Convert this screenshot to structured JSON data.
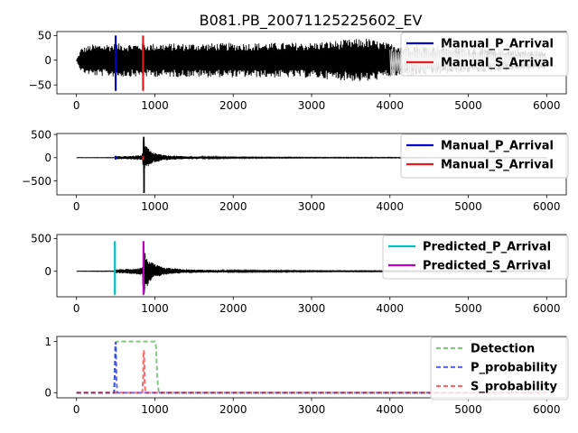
{
  "figure": {
    "title": "B081.PB_20071125225602_EV"
  },
  "chart_data": [
    {
      "type": "line",
      "title": "B081.PB_20071125225602_EV",
      "xlim": [
        -250,
        6250
      ],
      "ylim": [
        -68,
        58
      ],
      "x_ticks": [
        0,
        1000,
        2000,
        3000,
        4000,
        5000,
        6000
      ],
      "y_ticks": [
        50,
        0,
        -50
      ],
      "grid": false,
      "legend_position": "upper-right",
      "waveform": {
        "x_range": [
          0,
          6000
        ],
        "envelope": [
          [
            0,
            2
          ],
          [
            20,
            8
          ],
          [
            60,
            25
          ],
          [
            200,
            32
          ],
          [
            500,
            34
          ],
          [
            1000,
            34
          ],
          [
            2000,
            35
          ],
          [
            3000,
            36
          ],
          [
            3700,
            45
          ],
          [
            4000,
            34
          ],
          [
            4500,
            30
          ],
          [
            5000,
            26
          ],
          [
            5500,
            22
          ],
          [
            5990,
            18
          ],
          [
            6000,
            2
          ]
        ],
        "gray_overlay_range": [
          4000,
          6000
        ]
      },
      "series": [
        {
          "name": "Manual_P_Arrival",
          "x": 500,
          "y_range": [
            -62,
            50
          ],
          "color": "#0000cc",
          "style": "solid"
        },
        {
          "name": "Manual_S_Arrival",
          "x": 850,
          "y_range": [
            -62,
            50
          ],
          "color": "#e41a1c",
          "style": "solid"
        }
      ]
    },
    {
      "type": "line",
      "xlim": [
        -250,
        6250
      ],
      "ylim": [
        -800,
        520
      ],
      "x_ticks": [
        0,
        1000,
        2000,
        3000,
        4000,
        5000,
        6000
      ],
      "y_ticks": [
        500,
        0,
        -500
      ],
      "grid": false,
      "legend_position": "upper-right",
      "waveform": {
        "x_range": [
          0,
          6000
        ],
        "envelope": [
          [
            0,
            3
          ],
          [
            495,
            5
          ],
          [
            505,
            30
          ],
          [
            700,
            40
          ],
          [
            840,
            60
          ],
          [
            855,
            450
          ],
          [
            870,
            320
          ],
          [
            950,
            140
          ],
          [
            1100,
            60
          ],
          [
            1400,
            30
          ],
          [
            2000,
            15
          ],
          [
            3000,
            10
          ],
          [
            6000,
            6
          ]
        ],
        "peaks": [
          [
            858,
            450
          ],
          [
            862,
            -760
          ]
        ]
      },
      "series": [
        {
          "name": "Manual_P_Arrival",
          "x": 500,
          "y_range": [
            -40,
            40
          ],
          "color": "#0000cc",
          "style": "solid"
        },
        {
          "name": "Manual_S_Arrival",
          "x": 850,
          "y_range": [
            -40,
            40
          ],
          "color": "#e41a1c",
          "style": "solid"
        }
      ]
    },
    {
      "type": "line",
      "xlim": [
        -250,
        6250
      ],
      "ylim": [
        -390,
        560
      ],
      "x_ticks": [
        0,
        1000,
        2000,
        3000,
        4000,
        5000,
        6000
      ],
      "y_ticks": [
        500,
        0
      ],
      "grid": false,
      "legend_position": "upper-right",
      "waveform": {
        "x_range": [
          0,
          6000
        ],
        "envelope": [
          [
            0,
            3
          ],
          [
            495,
            5
          ],
          [
            505,
            30
          ],
          [
            700,
            40
          ],
          [
            840,
            60
          ],
          [
            855,
            400
          ],
          [
            870,
            300
          ],
          [
            950,
            140
          ],
          [
            1100,
            60
          ],
          [
            1400,
            30
          ],
          [
            2000,
            15
          ],
          [
            3000,
            10
          ],
          [
            6000,
            6
          ]
        ],
        "peaks": [
          [
            858,
            430
          ],
          [
            862,
            -330
          ]
        ]
      },
      "series": [
        {
          "name": "Predicted_P_Arrival",
          "x": 490,
          "y_range": [
            -360,
            460
          ],
          "color": "#00bfbf",
          "style": "solid"
        },
        {
          "name": "Predicted_S_Arrival",
          "x": 855,
          "y_range": [
            -360,
            460
          ],
          "color": "#bf00bf",
          "style": "solid"
        }
      ]
    },
    {
      "type": "line",
      "xlim": [
        -250,
        6250
      ],
      "ylim": [
        -0.1,
        1.1
      ],
      "x_ticks": [
        0,
        1000,
        2000,
        3000,
        4000,
        5000,
        6000
      ],
      "y_ticks": [
        1,
        0
      ],
      "grid": false,
      "legend_position": "upper-right",
      "series": [
        {
          "name": "Detection",
          "color": "#2ca02c",
          "style": "dashed",
          "x": [
            0,
            480,
            495,
            505,
            520,
            1000,
            1015,
            1030,
            1050,
            6000
          ],
          "y": [
            0,
            0,
            0.7,
            0.99,
            1.0,
            1.0,
            0.9,
            0.3,
            0,
            0
          ]
        },
        {
          "name": "P_probability",
          "color": "#0000ff",
          "style": "dashed",
          "x": [
            0,
            480,
            490,
            495,
            500,
            505,
            510,
            520,
            6000
          ],
          "y": [
            0,
            0,
            0.4,
            0.97,
            0.99,
            0.8,
            0.3,
            0,
            0
          ]
        },
        {
          "name": "S_probability",
          "color": "#ff0000",
          "style": "dashed",
          "x": [
            0,
            840,
            850,
            855,
            860,
            865,
            870,
            880,
            6000
          ],
          "y": [
            0,
            0,
            0.3,
            0.8,
            0.83,
            0.6,
            0.2,
            0,
            0
          ]
        }
      ]
    }
  ]
}
